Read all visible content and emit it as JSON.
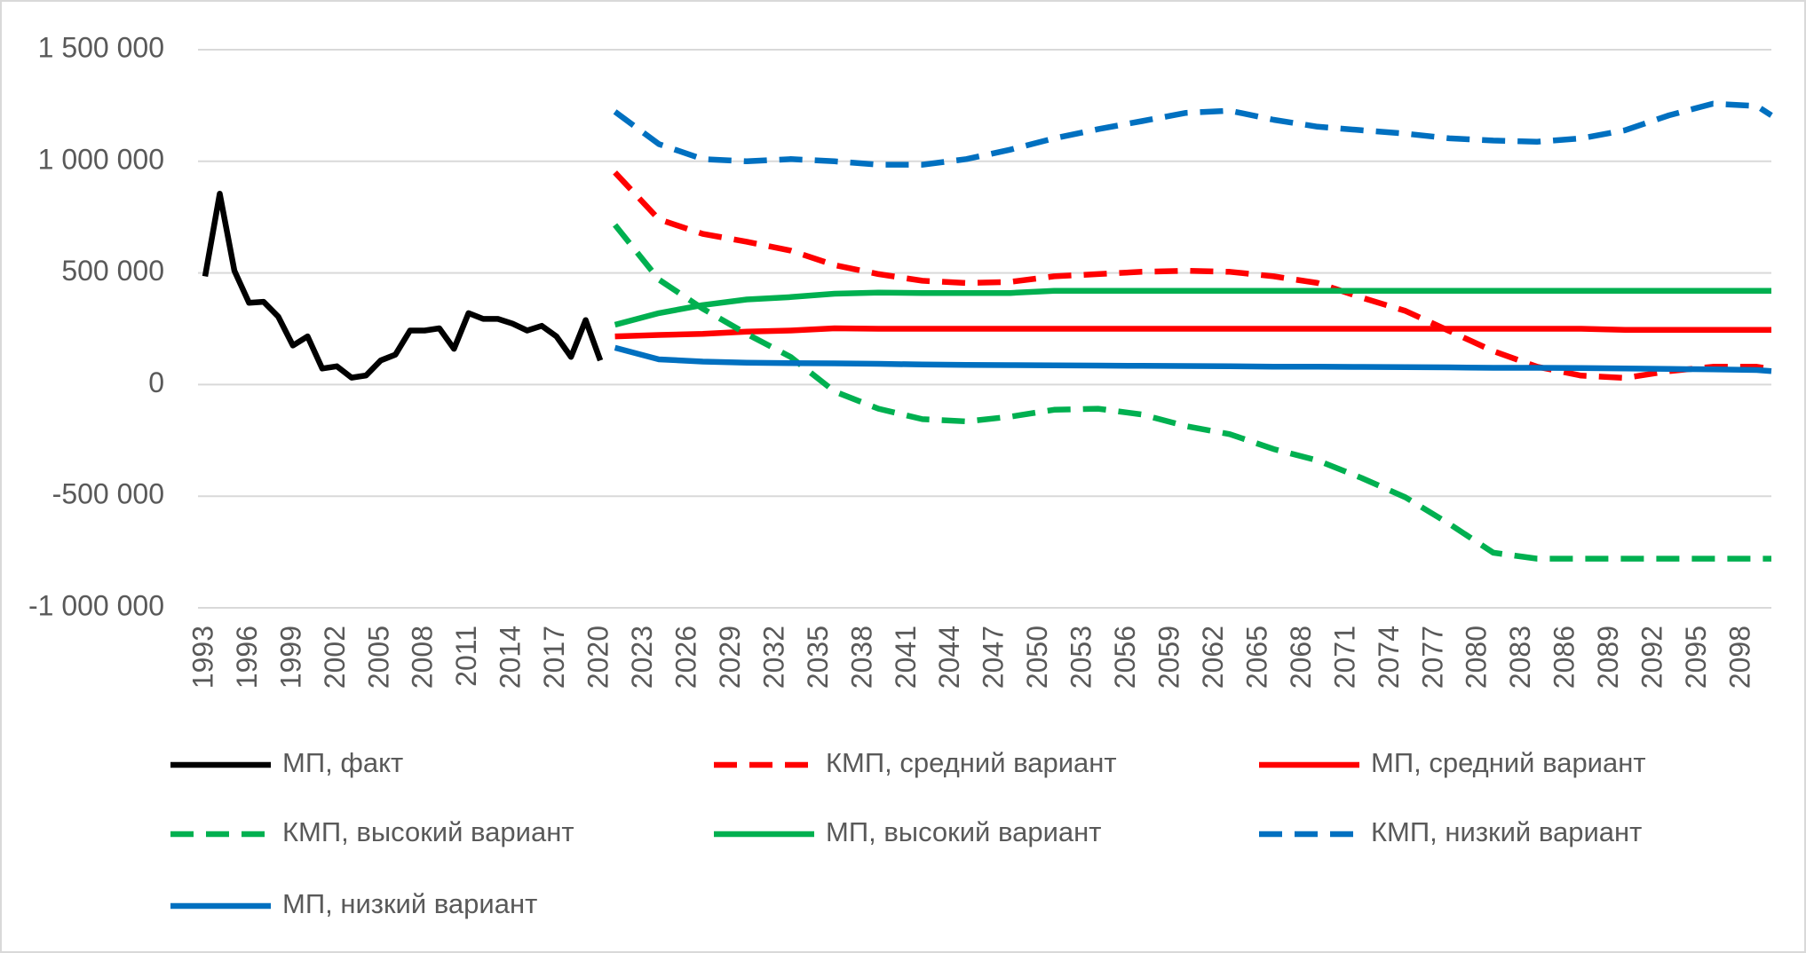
{
  "chart_data": {
    "type": "line",
    "x": [
      1993,
      1994,
      1995,
      1996,
      1997,
      1998,
      1999,
      2000,
      2001,
      2002,
      2003,
      2004,
      2005,
      2006,
      2007,
      2008,
      2009,
      2010,
      2011,
      2012,
      2013,
      2014,
      2015,
      2016,
      2017,
      2018,
      2019,
      2020,
      2021,
      2024,
      2027,
      2030,
      2033,
      2036,
      2039,
      2042,
      2045,
      2048,
      2051,
      2054,
      2057,
      2060,
      2063,
      2066,
      2069,
      2072,
      2075,
      2078,
      2081,
      2084,
      2087,
      2090,
      2093,
      2096,
      2099,
      2100
    ],
    "xlim": [
      1993,
      2100
    ],
    "xticks": [
      1993,
      1996,
      1999,
      2002,
      2005,
      2008,
      2011,
      2014,
      2017,
      2020,
      2023,
      2026,
      2029,
      2032,
      2035,
      2038,
      2041,
      2044,
      2047,
      2050,
      2053,
      2056,
      2059,
      2062,
      2065,
      2068,
      2071,
      2074,
      2077,
      2080,
      2083,
      2086,
      2089,
      2092,
      2095,
      2098
    ],
    "ylim": [
      -1000000,
      1500000
    ],
    "yticks": [
      {
        "value": -1000000,
        "label": "-1 000 000"
      },
      {
        "value": -500000,
        "label": "-500 000"
      },
      0,
      {
        "value": 500000,
        "label": "500 000"
      },
      {
        "value": 1000000,
        "label": "1 000 000"
      },
      {
        "value": 1500000,
        "label": "1 500 000"
      }
    ],
    "grid": true,
    "legend": "bottom",
    "series": [
      {
        "name": "МП, факт",
        "color": "#000000",
        "dashed": false,
        "values": [
          485000,
          855000,
          510000,
          366000,
          371000,
          304000,
          175000,
          216000,
          72000,
          82000,
          31000,
          41000,
          108000,
          134000,
          242000,
          242000,
          252000,
          160000,
          320000,
          294000,
          294000,
          273000,
          242000,
          263000,
          216000,
          124000,
          289000,
          108000,
          null,
          null,
          null,
          null,
          null,
          null,
          null,
          null,
          null,
          null,
          null,
          null,
          null,
          null,
          null,
          null,
          null,
          null,
          null,
          null,
          null,
          null,
          null,
          null,
          null,
          null,
          null,
          null
        ]
      },
      {
        "name": "КМП, средний вариант",
        "color": "#ff0000",
        "dashed": true,
        "values": [
          null,
          null,
          null,
          null,
          null,
          null,
          null,
          null,
          null,
          null,
          null,
          null,
          null,
          null,
          null,
          null,
          null,
          null,
          null,
          null,
          null,
          null,
          null,
          null,
          null,
          null,
          null,
          null,
          950000,
          740000,
          675000,
          640000,
          600000,
          535000,
          495000,
          465000,
          455000,
          460000,
          485000,
          495000,
          505000,
          510000,
          505000,
          485000,
          455000,
          390000,
          330000,
          240000,
          150000,
          80000,
          40000,
          30000,
          60000,
          80000,
          80000,
          70000
        ]
      },
      {
        "name": "МП, средний вариант",
        "color": "#ff0000",
        "dashed": false,
        "values": [
          null,
          null,
          null,
          null,
          null,
          null,
          null,
          null,
          null,
          null,
          null,
          null,
          null,
          null,
          null,
          null,
          null,
          null,
          null,
          null,
          null,
          null,
          null,
          null,
          null,
          null,
          null,
          null,
          216000,
          222000,
          227000,
          237000,
          242000,
          252000,
          250000,
          250000,
          250000,
          250000,
          250000,
          250000,
          250000,
          250000,
          250000,
          250000,
          250000,
          250000,
          250000,
          250000,
          250000,
          250000,
          250000,
          245000,
          245000,
          245000,
          245000,
          245000
        ]
      },
      {
        "name": "КМП, высокий вариант",
        "color": "#00b050",
        "dashed": true,
        "values": [
          null,
          null,
          null,
          null,
          null,
          null,
          null,
          null,
          null,
          null,
          null,
          null,
          null,
          null,
          null,
          null,
          null,
          null,
          null,
          null,
          null,
          null,
          null,
          null,
          null,
          null,
          null,
          null,
          715000,
          470000,
          340000,
          227000,
          124000,
          -31000,
          -108000,
          -155000,
          -165000,
          -144000,
          -113000,
          -108000,
          -134000,
          -186000,
          -222000,
          -289000,
          -340000,
          -418000,
          -505000,
          -624000,
          -753000,
          -780000,
          -780000,
          -780000,
          -780000,
          -780000,
          -780000,
          -780000
        ]
      },
      {
        "name": "МП, высокий вариант",
        "color": "#00b050",
        "dashed": false,
        "values": [
          null,
          null,
          null,
          null,
          null,
          null,
          null,
          null,
          null,
          null,
          null,
          null,
          null,
          null,
          null,
          null,
          null,
          null,
          null,
          null,
          null,
          null,
          null,
          null,
          null,
          null,
          null,
          null,
          268000,
          320000,
          356000,
          381000,
          392000,
          407000,
          412000,
          410000,
          410000,
          410000,
          420000,
          420000,
          420000,
          420000,
          420000,
          420000,
          420000,
          420000,
          420000,
          420000,
          420000,
          420000,
          420000,
          420000,
          420000,
          420000,
          420000,
          420000
        ]
      },
      {
        "name": "КМП, низкий вариант",
        "color": "#0070c0",
        "dashed": true,
        "values": [
          null,
          null,
          null,
          null,
          null,
          null,
          null,
          null,
          null,
          null,
          null,
          null,
          null,
          null,
          null,
          null,
          null,
          null,
          null,
          null,
          null,
          null,
          null,
          null,
          null,
          null,
          null,
          null,
          1222000,
          1077000,
          1010000,
          1000000,
          1010000,
          1000000,
          985000,
          985000,
          1010000,
          1052000,
          1103000,
          1144000,
          1180000,
          1217000,
          1227000,
          1186000,
          1155000,
          1139000,
          1124000,
          1103000,
          1093000,
          1088000,
          1103000,
          1139000,
          1206000,
          1258000,
          1248000,
          1206000
        ]
      },
      {
        "name": "МП, низкий вариант",
        "color": "#0070c0",
        "dashed": false,
        "values": [
          null,
          null,
          null,
          null,
          null,
          null,
          null,
          null,
          null,
          null,
          null,
          null,
          null,
          null,
          null,
          null,
          null,
          null,
          null,
          null,
          null,
          null,
          null,
          null,
          null,
          null,
          null,
          null,
          165000,
          113000,
          103000,
          98000,
          96000,
          95000,
          93000,
          90000,
          88000,
          87000,
          86000,
          85000,
          84000,
          83000,
          82000,
          80000,
          80000,
          79000,
          78000,
          77000,
          75000,
          75000,
          74000,
          72000,
          70000,
          68000,
          65000,
          60000
        ]
      }
    ]
  }
}
